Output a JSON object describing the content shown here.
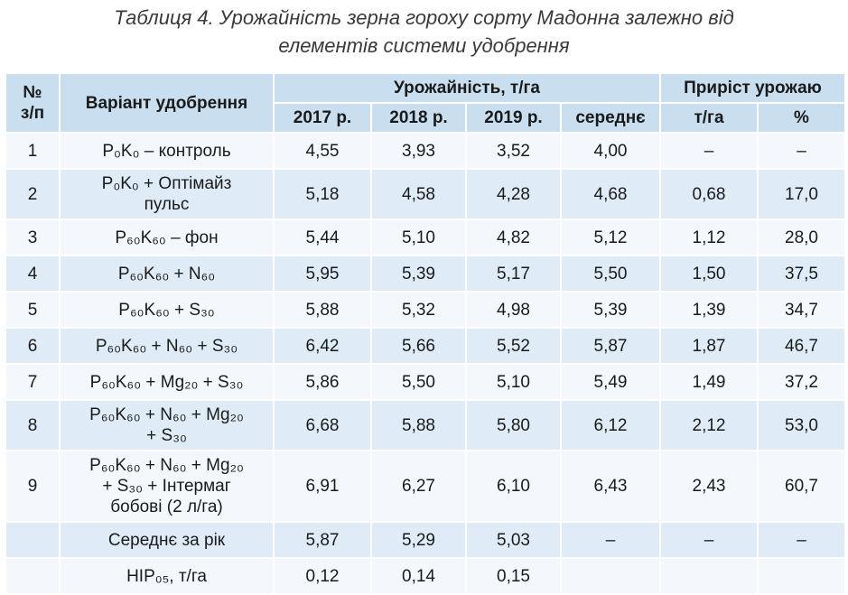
{
  "header": {
    "title": "Таблиця 4. Урожайність зерна гороху сорту Мадонна залежно від елементів системи удобрення"
  },
  "table": {
    "head_top": [
      "№\nз/п",
      "Варіант удобрення",
      "Урожайність, т/га",
      "Приріст урожаю"
    ],
    "head_sub": [
      "2017 р.",
      "2018 р.",
      "2019 р.",
      "середнє",
      "т/га",
      "%"
    ],
    "rows": [
      [
        "1",
        "P₀K₀ – контроль",
        "4,55",
        "3,93",
        "3,52",
        "4,00",
        "–",
        "–"
      ],
      [
        "2",
        "P₀K₀ + Оптімайз пульс",
        "5,18",
        "4,58",
        "4,28",
        "4,68",
        "0,68",
        "17,0"
      ],
      [
        "3",
        "P₆₀K₆₀ – фон",
        "5,44",
        "5,10",
        "4,82",
        "5,12",
        "1,12",
        "28,0"
      ],
      [
        "4",
        "P₆₀K₆₀ + N₆₀",
        "5,95",
        "5,39",
        "5,17",
        "5,50",
        "1,50",
        "37,5"
      ],
      [
        "5",
        "P₆₀K₆₀ + S₃₀",
        "5,88",
        "5,32",
        "4,98",
        "5,39",
        "1,39",
        "34,7"
      ],
      [
        "6",
        "P₆₀K₆₀ + N₆₀ + S₃₀",
        "6,42",
        "5,66",
        "5,52",
        "5,87",
        "1,87",
        "46,7"
      ],
      [
        "7",
        "P₆₀K₆₀ + Mg₂₀ + S₃₀",
        "5,86",
        "5,50",
        "5,10",
        "5,49",
        "1,49",
        "37,2"
      ],
      [
        "8",
        "P₆₀K₆₀ + N₆₀ + Mg₂₀ + S₃₀",
        "6,68",
        "5,88",
        "5,80",
        "6,12",
        "2,12",
        "53,0"
      ],
      [
        "9",
        "P₆₀K₆₀ + N₆₀ + Mg₂₀ + S₃₀ + Інтермаг бобові (2 л/га)",
        "6,91",
        "6,27",
        "6,10",
        "6,43",
        "2,43",
        "60,7"
      ],
      [
        null,
        "Середнє за рік",
        "5,87",
        "5,29",
        "5,03",
        "–",
        "–",
        "–"
      ],
      [
        null,
        "НІР₀₅, т/га",
        "0,12",
        "0,14",
        "0,15",
        null,
        null,
        null
      ]
    ]
  }
}
